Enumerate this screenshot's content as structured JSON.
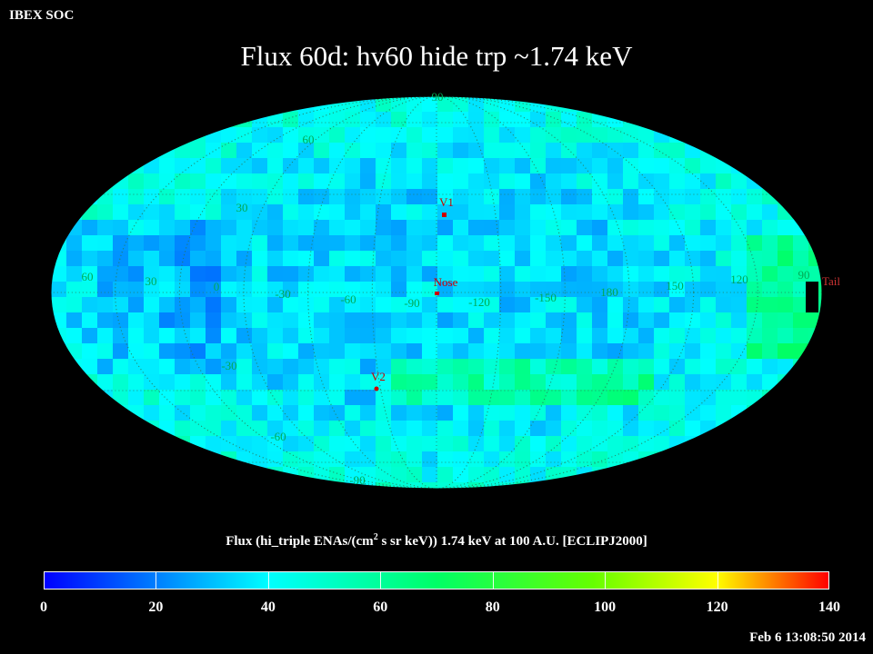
{
  "header": {
    "left_label": "IBEX SOC",
    "title": "Flux   60d: hv60 hide trp ~1.74 keV"
  },
  "map": {
    "projection": "hammer-aitoff",
    "latitude_labels_left": [
      "60",
      "30",
      "-30",
      "-60"
    ],
    "latitude_labels_center": [
      "90",
      "-90"
    ],
    "longitude_labels": [
      "60",
      "30",
      "0",
      "-30",
      "-60",
      "-90",
      "-120",
      "-150",
      "180",
      "150",
      "120",
      "90"
    ],
    "markers": [
      {
        "label": "V1",
        "color": "#cc0000"
      },
      {
        "label": "Nose",
        "color": "#cc0000"
      },
      {
        "label": "V2",
        "color": "#cc0000"
      },
      {
        "label": "Tail",
        "color": "#cc0000"
      }
    ],
    "label_color": "#00aa55"
  },
  "colorbar": {
    "title_pre": "Flux (hi_triple ENAs/(cm",
    "title_sup": "2",
    "title_post": " s sr keV))  1.74 keV at 100 A.U. [ECLIPJ2000]",
    "ticks": [
      "0",
      "20",
      "40",
      "60",
      "80",
      "100",
      "120",
      "140"
    ],
    "min": 0,
    "max": 140
  },
  "footer": {
    "timestamp": "Feb  6 13:08:50 2014"
  }
}
